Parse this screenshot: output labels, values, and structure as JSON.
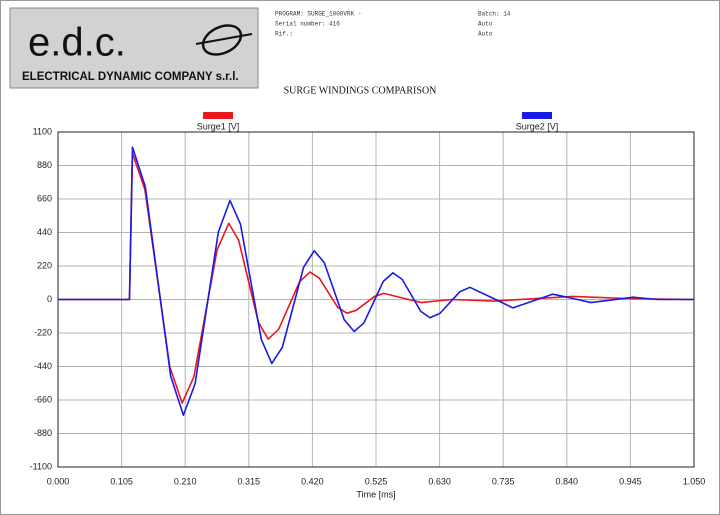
{
  "logo": {
    "mark": "e.d.c.",
    "company": "ELECTRICAL DYNAMIC COMPANY s.r.l."
  },
  "header": {
    "left": [
      "PROGRAM: SURGE_1000VRK -",
      "Serial number: 416",
      "Rif.:"
    ],
    "right": [
      "Batch: 14",
      "Auto",
      "Auto"
    ]
  },
  "chart_data": {
    "type": "line",
    "title": "SURGE WINDINGS COMPARISON",
    "x_label": "Time [ms]",
    "xlim": [
      0,
      1.05
    ],
    "xticks": [
      {
        "value": 0,
        "label": "0.000"
      },
      {
        "value": 0.105,
        "label": "0.105"
      },
      {
        "value": 0.21,
        "label": "0.210"
      },
      {
        "value": 0.315,
        "label": "0.315"
      },
      {
        "value": 0.42,
        "label": "0.420"
      },
      {
        "value": 0.525,
        "label": "0.525"
      },
      {
        "value": 0.63,
        "label": "0.630"
      },
      {
        "value": 0.735,
        "label": "0.735"
      },
      {
        "value": 0.84,
        "label": "0.840"
      },
      {
        "value": 0.945,
        "label": "0.945"
      },
      {
        "value": 1.05,
        "label": "1.050"
      }
    ],
    "ylim": [
      -1100,
      1100
    ],
    "yticks": [
      1100,
      880,
      660,
      440,
      220,
      0,
      -220,
      -440,
      -660,
      -880,
      -1100
    ],
    "grid": true,
    "series": [
      {
        "name": "Surge1 [V]",
        "color": "#e8191e",
        "x": [
          0,
          0.05,
          0.1,
          0.118,
          0.123,
          0.1435,
          0.164,
          0.1845,
          0.205,
          0.2243,
          0.2435,
          0.2628,
          0.282,
          0.2983,
          0.3145,
          0.3308,
          0.347,
          0.3643,
          0.3815,
          0.3988,
          0.416,
          0.4313,
          0.4465,
          0.4618,
          0.477,
          0.4923,
          0.5075,
          0.5228,
          0.538,
          0.569,
          0.6,
          0.65,
          0.72,
          0.85,
          0.95,
          1.05
        ],
        "values": [
          0,
          0,
          0,
          0,
          960,
          721,
          140,
          -441,
          -680,
          -508,
          -90,
          328,
          500,
          389,
          120,
          -149,
          -260,
          -196,
          -40,
          116,
          180,
          141,
          45,
          -51,
          -90,
          -71,
          -25,
          21,
          40,
          10,
          -20,
          0,
          -10,
          20,
          5,
          0
        ]
      },
      {
        "name": "Surge2 [V]",
        "color": "#1a1ae6",
        "x": [
          0,
          0.05,
          0.1,
          0.118,
          0.123,
          0.144,
          0.165,
          0.186,
          0.207,
          0.2263,
          0.2455,
          0.2648,
          0.284,
          0.3013,
          0.3185,
          0.3358,
          0.353,
          0.3705,
          0.388,
          0.4055,
          0.423,
          0.4395,
          0.456,
          0.4725,
          0.489,
          0.505,
          0.521,
          0.537,
          0.553,
          0.5683,
          0.5835,
          0.5988,
          0.614,
          0.6305,
          0.647,
          0.6635,
          0.68,
          0.7155,
          0.751,
          0.784,
          0.817,
          0.8485,
          0.88,
          0.95,
          0.99,
          1.05
        ],
        "values": [
          0,
          0,
          0,
          0,
          1000,
          743,
          120,
          -503,
          -760,
          -554,
          -55,
          444,
          650,
          494,
          115,
          -264,
          -420,
          -312,
          -50,
          212,
          320,
          243,
          55,
          -133,
          -210,
          -154,
          -18,
          119,
          175,
          132,
          28,
          -77,
          -120,
          -91,
          -20,
          51,
          80,
          13,
          -55,
          -10,
          35,
          8,
          -20,
          15,
          0,
          0
        ]
      }
    ]
  }
}
